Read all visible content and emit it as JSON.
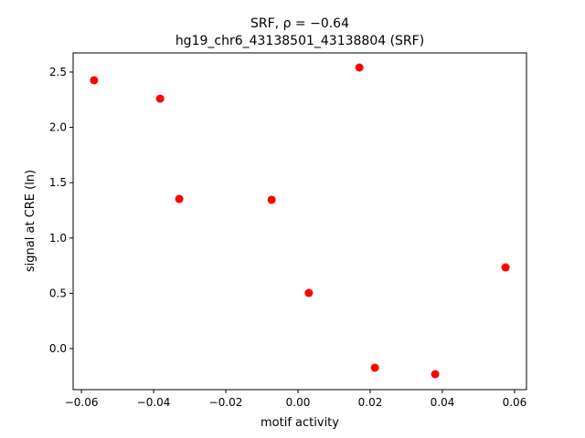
{
  "chart_data": {
    "type": "scatter",
    "title": "SRF, ρ = −0.64",
    "subtitle": "hg19_chr6_43138501_43138804 (SRF)",
    "x_label": "motif activity",
    "y_label": "signal at CRE (ln)",
    "color": "#ff0000",
    "x": [
      -0.0565,
      -0.0382,
      -0.0329,
      -0.0073,
      0.003,
      0.017,
      0.0213,
      0.038,
      0.0575
    ],
    "values": [
      2.426,
      2.26,
      1.353,
      1.345,
      0.503,
      2.541,
      -0.173,
      -0.231,
      0.734
    ],
    "xlim": [
      -0.0623,
      0.0633
    ],
    "ylim": [
      -0.371,
      2.673
    ],
    "xticks": [
      {
        "value": -0.06,
        "label": "−0.06"
      },
      {
        "value": -0.04,
        "label": "−0.04"
      },
      {
        "value": -0.02,
        "label": "−0.02"
      },
      {
        "value": 0,
        "label": "0.00"
      },
      0.02,
      0.04,
      0.06
    ],
    "yticks": [
      {
        "value": 0,
        "label": "0.0"
      },
      0.5,
      {
        "value": 1,
        "label": "1.0"
      },
      1.5,
      {
        "value": 2,
        "label": "2.0"
      },
      2.5
    ]
  }
}
